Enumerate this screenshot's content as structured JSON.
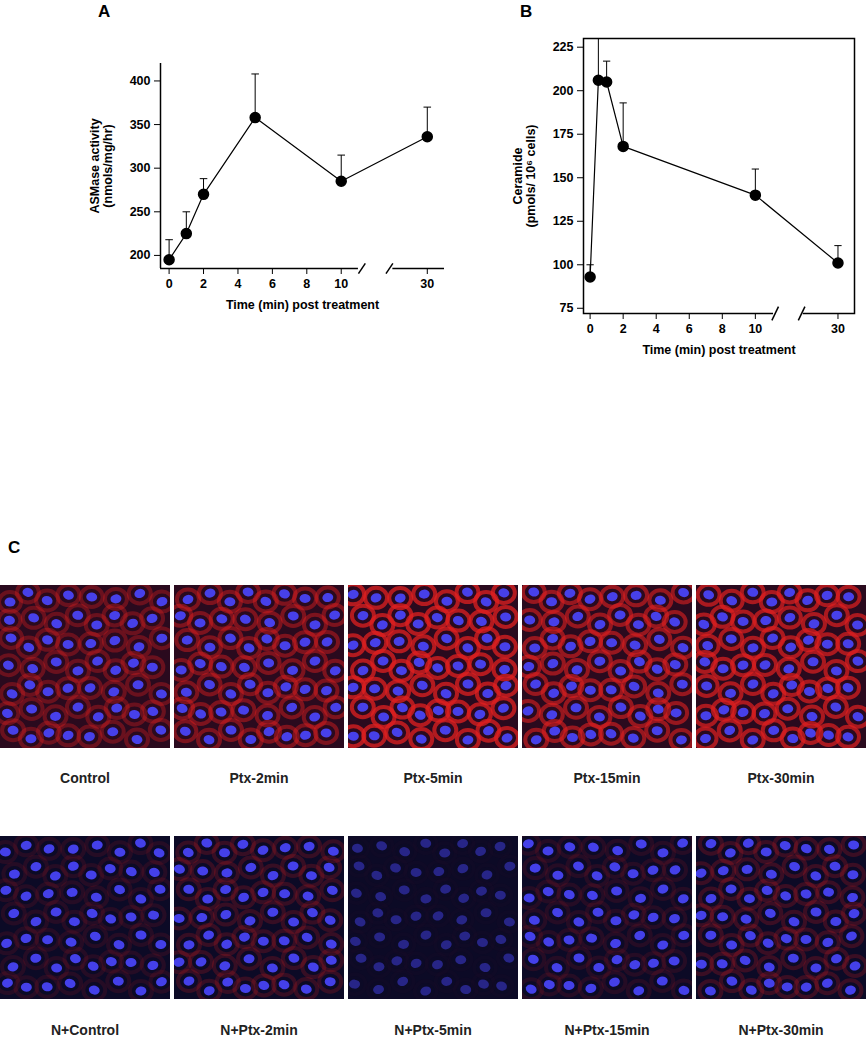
{
  "chart_data": [
    {
      "type": "line",
      "panel_label": "A",
      "xlabel": "Time (min) post treatment",
      "ylabel": "ASMase activity (nmols/mg/hr)",
      "x": [
        0,
        1,
        2,
        5,
        10,
        30
      ],
      "values": [
        195,
        225,
        270,
        358,
        285,
        336
      ],
      "error_upper": [
        23,
        25,
        18,
        50,
        30,
        34
      ],
      "color": "#000000",
      "marker": "circle",
      "line_style": "solid",
      "xlim": [
        -0.5,
        31
      ],
      "xticks": [
        0,
        2,
        4,
        6,
        8,
        10,
        30
      ],
      "ylim": [
        185,
        420
      ],
      "yticks": [
        200,
        250,
        300,
        350,
        400
      ],
      "grid": false
    },
    {
      "type": "line",
      "panel_label": "B",
      "xlabel": "Time (min) post treatment",
      "ylabel": "Ceramide (pmols/ 10⁶ cells)",
      "x": [
        0,
        0.5,
        1,
        2,
        10,
        30
      ],
      "values": [
        93,
        206,
        205,
        168,
        140,
        101
      ],
      "error_upper": [
        7,
        24,
        12,
        25,
        15,
        10
      ],
      "color": "#000000",
      "marker": "circle",
      "line_style": "solid",
      "xlim": [
        -0.4,
        31
      ],
      "xticks": [
        0,
        2,
        4,
        6,
        8,
        10,
        30
      ],
      "ylim": [
        72,
        230
      ],
      "yticks": [
        75,
        100,
        125,
        150,
        175,
        200,
        225
      ],
      "grid": false
    }
  ],
  "figure": {
    "panel_label": "C",
    "image_rows": [
      [
        "Control",
        "Ptx-2min",
        "Ptx-5min",
        "Ptx-15min",
        "Ptx-30min"
      ],
      [
        "N+Control",
        "N+Ptx-2min",
        "N+Ptx-5min",
        "N+Ptx-15min",
        "N+Ptx-30min"
      ]
    ]
  }
}
